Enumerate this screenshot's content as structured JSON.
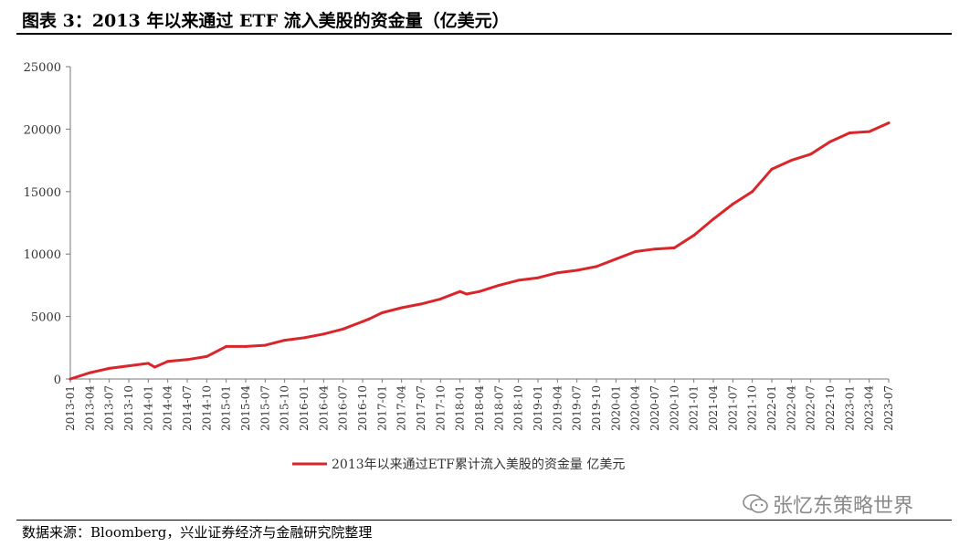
{
  "header": {
    "title": "图表 3：2013 年以来通过 ETF 流入美股的资金量（亿美元）"
  },
  "footer": {
    "source": "数据来源：Bloomberg，兴业证券经济与金融研究院整理",
    "watermark": "张忆东策略世界"
  },
  "chart_data": {
    "type": "line",
    "title": "图表 3：2013 年以来通过 ETF 流入美股的资金量（亿美元）",
    "xlabel": "",
    "ylabel": "",
    "ylim": [
      0,
      25000
    ],
    "yticks": [
      "0",
      "5000",
      "10000",
      "15000",
      "20000",
      "25000"
    ],
    "xticks": [
      "2013-01",
      "2013-04",
      "2013-07",
      "2013-10",
      "2014-01",
      "2014-04",
      "2014-07",
      "2014-10",
      "2015-01",
      "2015-04",
      "2015-07",
      "2015-10",
      "2016-01",
      "2016-04",
      "2016-07",
      "2016-10",
      "2017-01",
      "2017-04",
      "2017-07",
      "2017-10",
      "2018-01",
      "2018-04",
      "2018-07",
      "2018-10",
      "2019-01",
      "2019-04",
      "2019-07",
      "2019-10",
      "2020-01",
      "2020-04",
      "2020-07",
      "2020-10",
      "2021-01",
      "2021-04",
      "2021-07",
      "2021-10",
      "2022-01",
      "2022-04",
      "2022-07",
      "2022-10",
      "2023-01",
      "2023-04",
      "2023-07"
    ],
    "grid": false,
    "legend_position": "bottom-center",
    "series": [
      {
        "name": "2013年以来通过ETF累计流入美股的资金量 亿美元",
        "color": "#d9262a",
        "x": [
          "2013-01",
          "2013-04",
          "2013-07",
          "2013-10",
          "2014-01",
          "2014-02",
          "2014-04",
          "2014-07",
          "2014-10",
          "2015-01",
          "2015-04",
          "2015-07",
          "2015-10",
          "2016-01",
          "2016-04",
          "2016-07",
          "2016-10",
          "2016-11",
          "2017-01",
          "2017-04",
          "2017-07",
          "2017-10",
          "2018-01",
          "2018-02",
          "2018-04",
          "2018-07",
          "2018-10",
          "2019-01",
          "2019-04",
          "2019-07",
          "2019-10",
          "2020-01",
          "2020-04",
          "2020-07",
          "2020-10",
          "2021-01",
          "2021-04",
          "2021-07",
          "2021-10",
          "2022-01",
          "2022-04",
          "2022-07",
          "2022-10",
          "2023-01",
          "2023-04",
          "2023-07"
        ],
        "values": [
          0,
          500,
          850,
          1050,
          1250,
          950,
          1400,
          1550,
          1800,
          2600,
          2600,
          2700,
          3100,
          3300,
          3600,
          4000,
          4600,
          4800,
          5300,
          5700,
          6000,
          6400,
          7000,
          6800,
          7000,
          7500,
          7900,
          8100,
          8500,
          8700,
          9000,
          9600,
          10200,
          10400,
          10500,
          11500,
          12800,
          14000,
          15000,
          16800,
          17500,
          18000,
          19000,
          19700,
          19800,
          20500
        ]
      }
    ]
  }
}
